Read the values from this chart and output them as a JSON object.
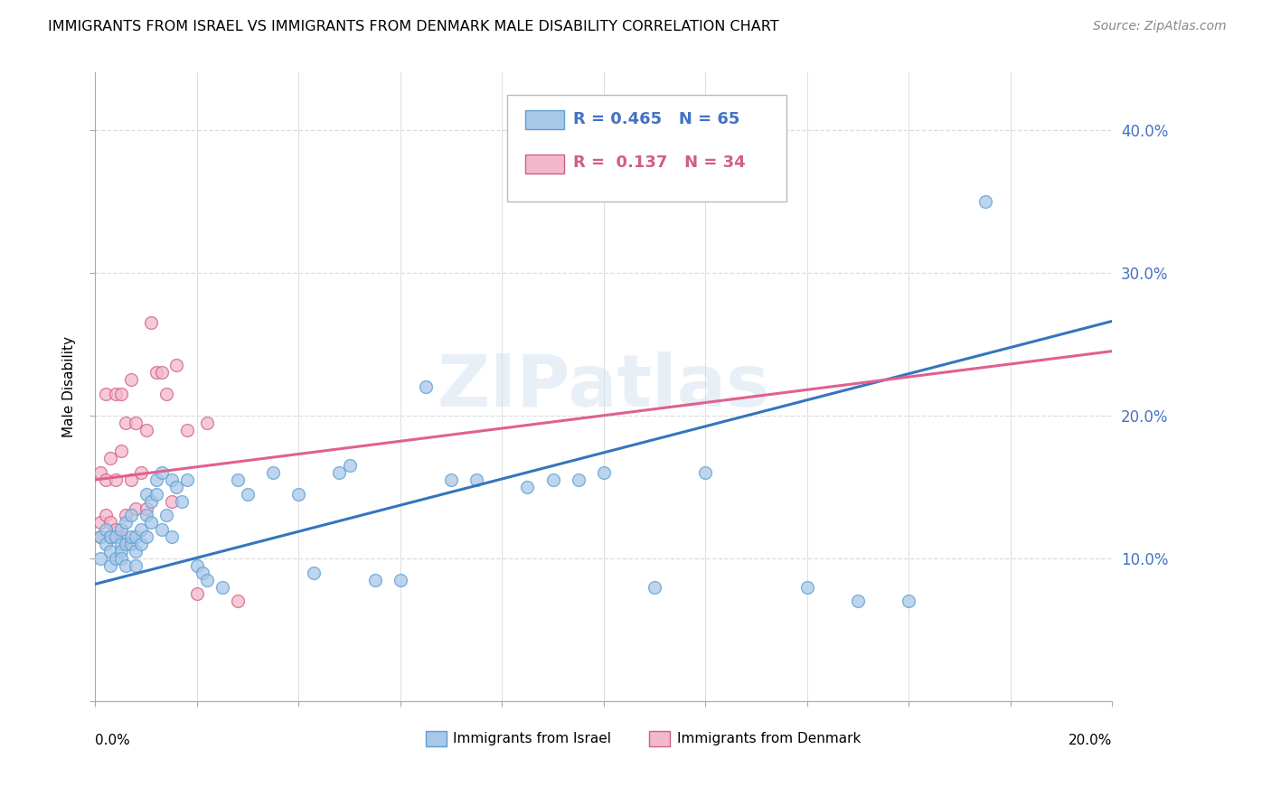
{
  "title": "IMMIGRANTS FROM ISRAEL VS IMMIGRANTS FROM DENMARK MALE DISABILITY CORRELATION CHART",
  "source": "Source: ZipAtlas.com",
  "ylabel": "Male Disability",
  "r_israel": 0.465,
  "n_israel": 65,
  "r_denmark": 0.137,
  "n_denmark": 34,
  "color_israel_fill": "#a8c8e8",
  "color_israel_edge": "#5a9fd4",
  "color_denmark_fill": "#f4b8cc",
  "color_denmark_edge": "#d06080",
  "color_israel_line": "#3575bd",
  "color_denmark_line": "#e06090",
  "color_right_axis": "#4472c4",
  "color_grid": "#dddddd",
  "xlim": [
    0.0,
    0.2
  ],
  "ylim": [
    0.0,
    0.44
  ],
  "yticks": [
    0.0,
    0.1,
    0.2,
    0.3,
    0.4
  ],
  "ytick_labels": [
    "",
    "10.0%",
    "20.0%",
    "30.0%",
    "40.0%"
  ],
  "watermark": "ZIPatlas",
  "israel_x": [
    0.001,
    0.001,
    0.002,
    0.002,
    0.003,
    0.003,
    0.003,
    0.004,
    0.004,
    0.005,
    0.005,
    0.005,
    0.005,
    0.006,
    0.006,
    0.006,
    0.007,
    0.007,
    0.007,
    0.008,
    0.008,
    0.008,
    0.009,
    0.009,
    0.01,
    0.01,
    0.01,
    0.011,
    0.011,
    0.012,
    0.012,
    0.013,
    0.013,
    0.014,
    0.015,
    0.015,
    0.016,
    0.017,
    0.018,
    0.02,
    0.021,
    0.022,
    0.025,
    0.028,
    0.03,
    0.035,
    0.04,
    0.043,
    0.048,
    0.05,
    0.055,
    0.06,
    0.065,
    0.07,
    0.075,
    0.085,
    0.09,
    0.095,
    0.1,
    0.11,
    0.12,
    0.14,
    0.15,
    0.16,
    0.175
  ],
  "israel_y": [
    0.1,
    0.115,
    0.11,
    0.12,
    0.105,
    0.115,
    0.095,
    0.1,
    0.115,
    0.11,
    0.105,
    0.1,
    0.12,
    0.095,
    0.11,
    0.125,
    0.11,
    0.115,
    0.13,
    0.105,
    0.115,
    0.095,
    0.11,
    0.12,
    0.13,
    0.145,
    0.115,
    0.14,
    0.125,
    0.155,
    0.145,
    0.16,
    0.12,
    0.13,
    0.155,
    0.115,
    0.15,
    0.14,
    0.155,
    0.095,
    0.09,
    0.085,
    0.08,
    0.155,
    0.145,
    0.16,
    0.145,
    0.09,
    0.16,
    0.165,
    0.085,
    0.085,
    0.22,
    0.155,
    0.155,
    0.15,
    0.155,
    0.155,
    0.16,
    0.08,
    0.16,
    0.08,
    0.07,
    0.07,
    0.35
  ],
  "denmark_x": [
    0.001,
    0.001,
    0.001,
    0.002,
    0.002,
    0.002,
    0.003,
    0.003,
    0.003,
    0.004,
    0.004,
    0.004,
    0.005,
    0.005,
    0.005,
    0.006,
    0.006,
    0.007,
    0.007,
    0.008,
    0.008,
    0.009,
    0.01,
    0.01,
    0.011,
    0.012,
    0.013,
    0.014,
    0.015,
    0.016,
    0.018,
    0.02,
    0.022,
    0.028
  ],
  "denmark_y": [
    0.115,
    0.125,
    0.16,
    0.13,
    0.155,
    0.215,
    0.115,
    0.125,
    0.17,
    0.12,
    0.155,
    0.215,
    0.115,
    0.175,
    0.215,
    0.13,
    0.195,
    0.155,
    0.225,
    0.135,
    0.195,
    0.16,
    0.19,
    0.135,
    0.265,
    0.23,
    0.23,
    0.215,
    0.14,
    0.235,
    0.19,
    0.075,
    0.195,
    0.07
  ],
  "trend_israel_slope": 0.92,
  "trend_israel_intercept": 0.082,
  "trend_denmark_slope": 0.45,
  "trend_denmark_intercept": 0.155
}
